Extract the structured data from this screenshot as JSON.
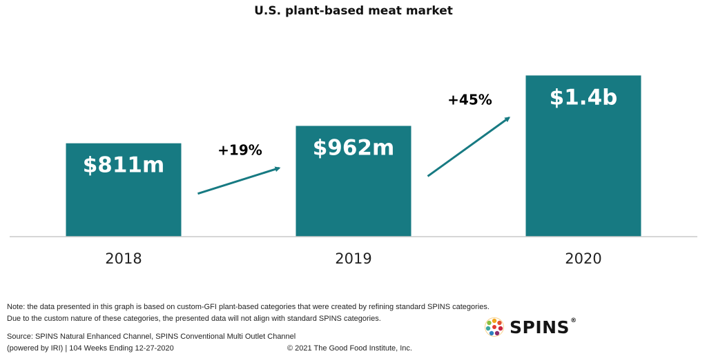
{
  "chart_data": {
    "type": "bar",
    "title": "U.S. plant-based meat market",
    "categories": [
      "2018",
      "2019",
      "2020"
    ],
    "values": [
      811,
      962,
      1400
    ],
    "value_unit": "million USD",
    "data_labels": [
      "$811m",
      "$962m",
      "$1.4b"
    ],
    "growth_annotations": [
      {
        "from": "2018",
        "to": "2019",
        "label": "+19%"
      },
      {
        "from": "2019",
        "to": "2020",
        "label": "+45%"
      }
    ],
    "bar_color": "#177a82",
    "ylim": [
      0,
      1600
    ],
    "grid": false,
    "legend": "none"
  },
  "footer": {
    "note": "Note: the data presented in this graph is based on custom-GFI plant-based categories that were created by refining standard SPINS categories. Due to the custom nature of these categories, the presented data will not align with standard SPINS categories.",
    "source": "Source: SPINS Natural Enhanced Channel, SPINS Conventional Multi Outlet Channel (powered by IRI) | 104 Weeks Ending 12-27-2020",
    "copyright": "© 2021 The Good Food Institute, Inc."
  },
  "logo": {
    "text": "SPINS",
    "registered": "®",
    "icon": "spins-globe-icon"
  }
}
